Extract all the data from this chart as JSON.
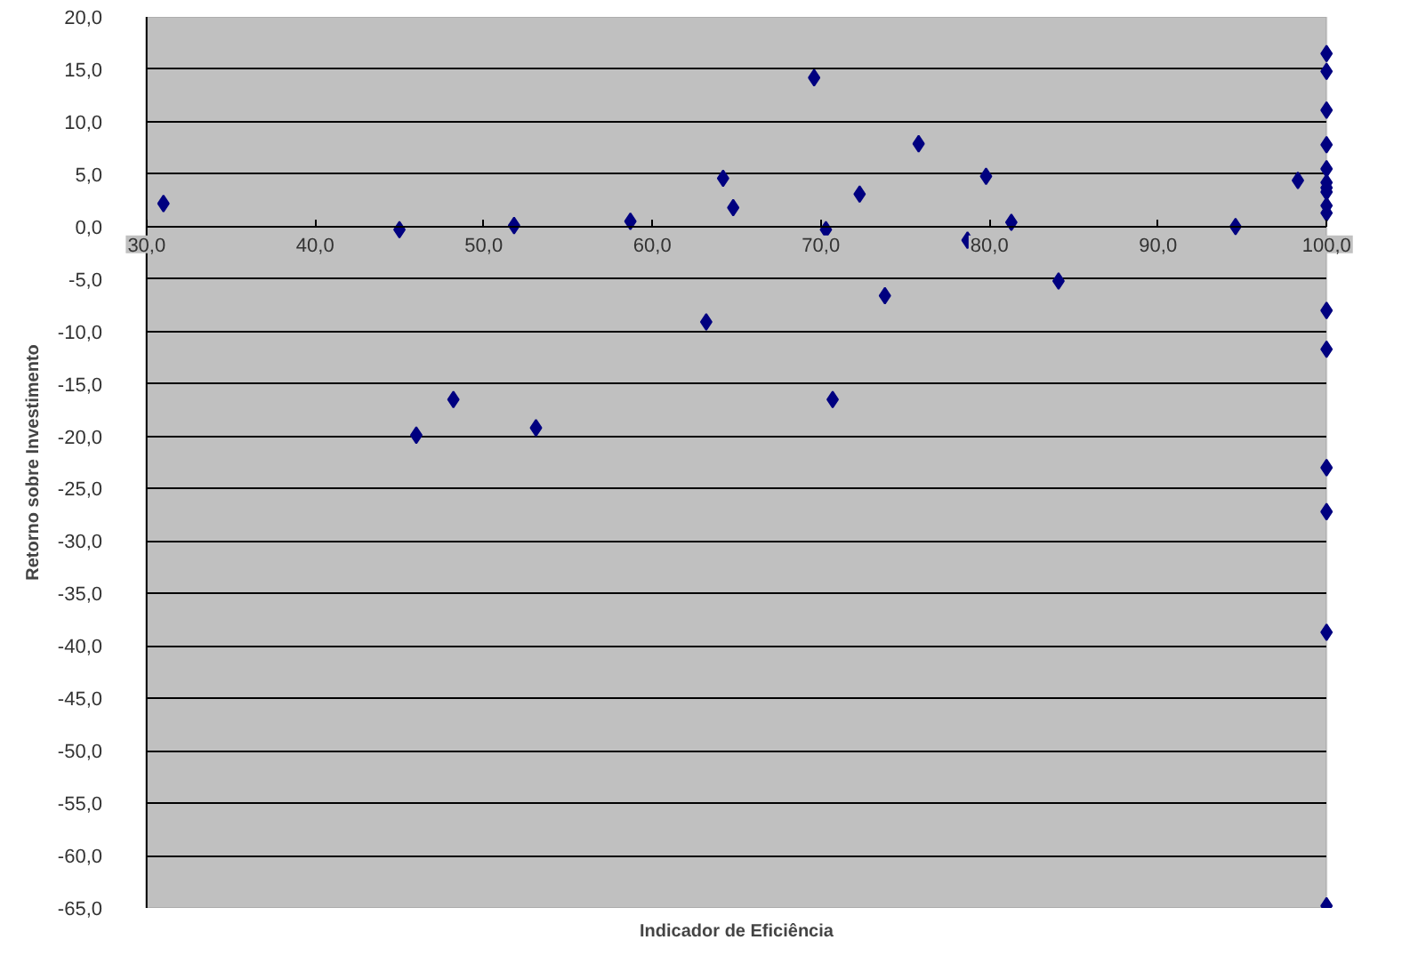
{
  "chart_data": {
    "type": "scatter",
    "xlabel": "Indicador de Eficiência",
    "ylabel": "Retorno sobre Investimento",
    "x": [
      31,
      45,
      46,
      48.2,
      51.8,
      53.1,
      58.7,
      63.2,
      64.2,
      64.8,
      69.6,
      70.3,
      70.7,
      72.3,
      73.8,
      75.8,
      78.7,
      79.8,
      81.3,
      84.1,
      94.6,
      98.3,
      100,
      100,
      100,
      100,
      100,
      100,
      100,
      100,
      100,
      100,
      100,
      100,
      100,
      100,
      100,
      100
    ],
    "series": [
      {
        "color": "#000080",
        "values": [
          2.2,
          -0.3,
          -19.9,
          -16.5,
          0.1,
          -19.2,
          0.5,
          -9.1,
          4.6,
          1.8,
          14.2,
          -0.3,
          -16.5,
          3.1,
          -6.6,
          7.9,
          -1.3,
          4.8,
          0.4,
          -5.2,
          0.0,
          4.4,
          16.5,
          14.8,
          11.1,
          7.8,
          5.5,
          4.2,
          3.7,
          3.3,
          2.0,
          1.3,
          -8.0,
          -11.7,
          -23.0,
          -27.2,
          -38.7,
          -64.8
        ]
      }
    ],
    "marker": "diamond",
    "grid": "y",
    "xlim": [
      30,
      100
    ],
    "ylim": [
      -65,
      20
    ],
    "xticks": [
      {
        "value": 30,
        "label": "30,0"
      },
      {
        "value": 40,
        "label": "40,0"
      },
      {
        "value": 50,
        "label": "50,0"
      },
      {
        "value": 60,
        "label": "60,0"
      },
      {
        "value": 70,
        "label": "70,0"
      },
      {
        "value": 80,
        "label": "80,0"
      },
      {
        "value": 90,
        "label": "90,0"
      },
      {
        "value": 100,
        "label": "100,0"
      }
    ],
    "yticks": [
      {
        "value": 20,
        "label": "20,0"
      },
      {
        "value": 15,
        "label": "15,0"
      },
      {
        "value": 10,
        "label": "10,0"
      },
      {
        "value": 5,
        "label": "5,0"
      },
      {
        "value": 0,
        "label": "0,0"
      },
      {
        "value": -5,
        "label": "-5,0"
      },
      {
        "value": -10,
        "label": "-10,0"
      },
      {
        "value": -15,
        "label": "-15,0"
      },
      {
        "value": -20,
        "label": "-20,0"
      },
      {
        "value": -25,
        "label": "-25,0"
      },
      {
        "value": -30,
        "label": "-30,0"
      },
      {
        "value": -35,
        "label": "-35,0"
      },
      {
        "value": -40,
        "label": "-40,0"
      },
      {
        "value": -45,
        "label": "-45,0"
      },
      {
        "value": -50,
        "label": "-50,0"
      },
      {
        "value": -55,
        "label": "-55,0"
      },
      {
        "value": -60,
        "label": "-60,0"
      },
      {
        "value": -65,
        "label": "-65,0"
      }
    ]
  }
}
